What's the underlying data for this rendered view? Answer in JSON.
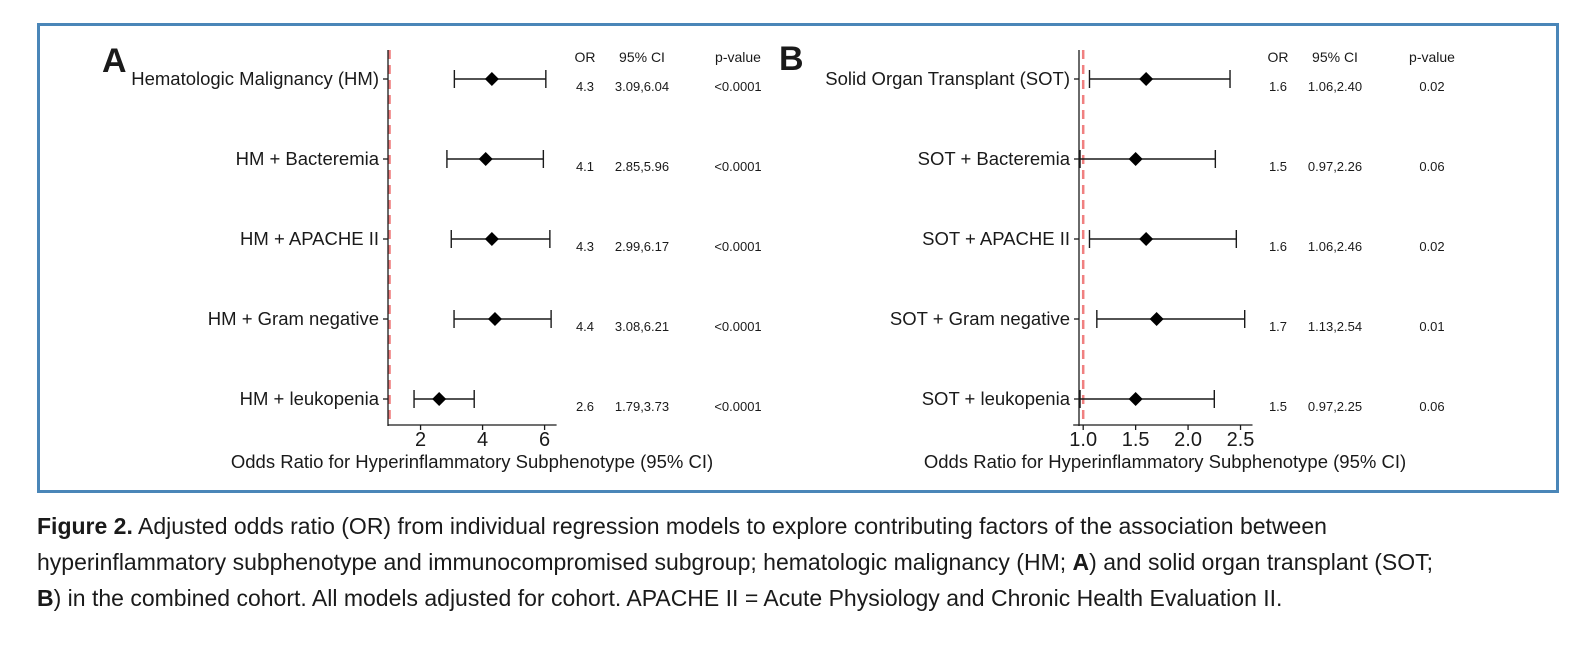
{
  "chart_data": [
    {
      "type": "forest",
      "panel_letter": "A",
      "xlabel": "Odds Ratio for Hyperinflammatory Subphenotype (95% CI)",
      "xlim": [
        0.95,
        6.4
      ],
      "xticks": [
        2,
        4,
        6
      ],
      "xtick_labels": [
        "2",
        "4",
        "6"
      ],
      "reference_line": 1,
      "reference_color": "#f08080",
      "column_headers": [
        "OR",
        "95% CI",
        "p-value"
      ],
      "rows": [
        {
          "label": "Hematologic Malignancy (HM)",
          "or": 4.3,
          "ci_low": 3.09,
          "ci_high": 6.04,
          "or_text": "4.3",
          "ci_text": "3.09,6.04",
          "p_text": "<0.0001"
        },
        {
          "label": "HM + Bacteremia",
          "or": 4.1,
          "ci_low": 2.85,
          "ci_high": 5.96,
          "or_text": "4.1",
          "ci_text": "2.85,5.96",
          "p_text": "<0.0001"
        },
        {
          "label": "HM + APACHE II",
          "or": 4.3,
          "ci_low": 2.99,
          "ci_high": 6.17,
          "or_text": "4.3",
          "ci_text": "2.99,6.17",
          "p_text": "<0.0001"
        },
        {
          "label": "HM + Gram negative",
          "or": 4.4,
          "ci_low": 3.08,
          "ci_high": 6.21,
          "or_text": "4.4",
          "ci_text": "3.08,6.21",
          "p_text": "<0.0001"
        },
        {
          "label": "HM + leukopenia",
          "or": 2.6,
          "ci_low": 1.79,
          "ci_high": 3.73,
          "or_text": "2.6",
          "ci_text": "1.79,3.73",
          "p_text": "<0.0001"
        }
      ]
    },
    {
      "type": "forest",
      "panel_letter": "B",
      "xlabel": "Odds Ratio for Hyperinflammatory Subphenotype (95% CI)",
      "xlim": [
        0.96,
        2.6
      ],
      "xticks": [
        1.0,
        1.5,
        2.0,
        2.5
      ],
      "xtick_labels": [
        "1.0",
        "1.5",
        "2.0",
        "2.5"
      ],
      "reference_line": 1,
      "reference_color": "#f08080",
      "column_headers": [
        "OR",
        "95% CI",
        "p-value"
      ],
      "rows": [
        {
          "label": "Solid Organ Transplant (SOT)",
          "or": 1.6,
          "ci_low": 1.06,
          "ci_high": 2.4,
          "or_text": "1.6",
          "ci_text": "1.06,2.40",
          "p_text": "0.02"
        },
        {
          "label": "SOT + Bacteremia",
          "or": 1.5,
          "ci_low": 0.97,
          "ci_high": 2.26,
          "or_text": "1.5",
          "ci_text": "0.97,2.26",
          "p_text": "0.06"
        },
        {
          "label": "SOT + APACHE II",
          "or": 1.6,
          "ci_low": 1.06,
          "ci_high": 2.46,
          "or_text": "1.6",
          "ci_text": "1.06,2.46",
          "p_text": "0.02"
        },
        {
          "label": "SOT + Gram negative",
          "or": 1.7,
          "ci_low": 1.13,
          "ci_high": 2.54,
          "or_text": "1.7",
          "ci_text": "1.13,2.54",
          "p_text": "0.01"
        },
        {
          "label": "SOT + leukopenia",
          "or": 1.5,
          "ci_low": 0.97,
          "ci_high": 2.25,
          "or_text": "1.5",
          "ci_text": "0.97,2.25",
          "p_text": "0.06"
        }
      ]
    }
  ],
  "caption": {
    "figure_label": "Figure 2.",
    "line1": " Adjusted odds ratio (OR) from individual regression models to explore contributing factors of the association between",
    "line2a": "hyperinflammatory subphenotype and immunocompromised subgroup; hematologic malignancy (HM; ",
    "panel_a": "A",
    "line2b": ") and solid organ transplant (SOT;",
    "panel_b": "B",
    "line3": ") in the combined cohort. All models adjusted for cohort. APACHE II = Acute Physiology and Chronic Health Evaluation II."
  },
  "colors": {
    "frame_border": "#4a86b8",
    "reference_line": "#f08080",
    "ink": "#1a1a1a"
  }
}
